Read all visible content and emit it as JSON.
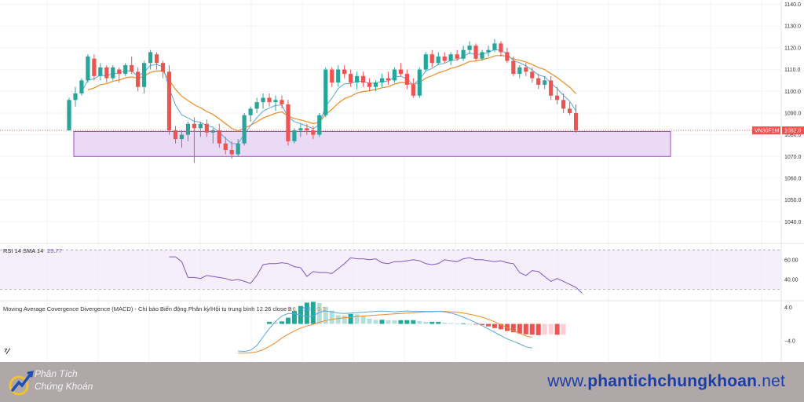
{
  "chart_data": {
    "type": "candlestick",
    "symbol_label": "VN30F1M",
    "last_price_label": "1082.0",
    "price_axis_ticks": [
      "1140.0",
      "1130.0",
      "1120.0",
      "1110.0",
      "1100.0",
      "1090.0",
      "1080.0",
      "1070.0",
      "1060.0",
      "1050.0",
      "1040.0"
    ],
    "price_ylim": [
      1030,
      1142
    ],
    "support_zone": [
      1070,
      1081.5
    ],
    "candles_ohlc": [
      [
        1082,
        1097,
        1082,
        1096
      ],
      [
        1096,
        1102,
        1093,
        1099
      ],
      [
        1099,
        1106,
        1098,
        1105
      ],
      [
        1105,
        1117,
        1104,
        1116
      ],
      [
        1115,
        1117,
        1105,
        1107
      ],
      [
        1107,
        1113,
        1105,
        1111
      ],
      [
        1111,
        1112,
        1104,
        1106
      ],
      [
        1106,
        1112,
        1105,
        1111
      ],
      [
        1110,
        1111,
        1104,
        1108
      ],
      [
        1108,
        1113,
        1107,
        1112
      ],
      [
        1112,
        1116,
        1108,
        1109
      ],
      [
        1109,
        1111,
        1100,
        1102
      ],
      [
        1102,
        1114,
        1099,
        1113
      ],
      [
        1113,
        1119,
        1110,
        1118
      ],
      [
        1117,
        1118,
        1110,
        1113
      ],
      [
        1113,
        1114,
        1106,
        1109
      ],
      [
        1109,
        1112,
        1080,
        1082
      ],
      [
        1082,
        1084,
        1076,
        1078
      ],
      [
        1078,
        1082,
        1074,
        1080
      ],
      [
        1080,
        1086,
        1077,
        1085
      ],
      [
        1085,
        1088,
        1067,
        1083
      ],
      [
        1083,
        1086,
        1079,
        1085
      ],
      [
        1085,
        1087,
        1079,
        1081
      ],
      [
        1081,
        1083,
        1076,
        1082
      ],
      [
        1082,
        1085,
        1074,
        1076
      ],
      [
        1076,
        1079,
        1071,
        1073
      ],
      [
        1073,
        1077,
        1069,
        1071
      ],
      [
        1071,
        1078,
        1070,
        1076
      ],
      [
        1076,
        1090,
        1075,
        1089
      ],
      [
        1089,
        1093,
        1086,
        1092
      ],
      [
        1092,
        1097,
        1090,
        1095
      ],
      [
        1095,
        1099,
        1092,
        1097
      ],
      [
        1097,
        1099,
        1093,
        1095
      ],
      [
        1095,
        1098,
        1091,
        1096
      ],
      [
        1096,
        1098,
        1092,
        1094
      ],
      [
        1094,
        1096,
        1075,
        1077
      ],
      [
        1077,
        1083,
        1076,
        1082
      ],
      [
        1082,
        1085,
        1079,
        1083
      ],
      [
        1083,
        1085,
        1080,
        1082
      ],
      [
        1082,
        1084,
        1078,
        1080
      ],
      [
        1080,
        1090,
        1079,
        1089
      ],
      [
        1089,
        1111,
        1088,
        1110
      ],
      [
        1110,
        1111,
        1102,
        1104
      ],
      [
        1104,
        1112,
        1102,
        1110
      ],
      [
        1110,
        1112,
        1106,
        1108
      ],
      [
        1108,
        1110,
        1102,
        1104
      ],
      [
        1104,
        1109,
        1101,
        1107
      ],
      [
        1107,
        1109,
        1102,
        1104
      ],
      [
        1104,
        1106,
        1100,
        1102
      ],
      [
        1102,
        1105,
        1100,
        1104
      ],
      [
        1104,
        1108,
        1102,
        1106
      ],
      [
        1106,
        1109,
        1103,
        1105
      ],
      [
        1105,
        1111,
        1104,
        1110
      ],
      [
        1110,
        1113,
        1107,
        1108
      ],
      [
        1108,
        1110,
        1101,
        1103
      ],
      [
        1103,
        1106,
        1097,
        1098
      ],
      [
        1098,
        1111,
        1097,
        1110
      ],
      [
        1110,
        1118,
        1109,
        1117
      ],
      [
        1117,
        1119,
        1111,
        1113
      ],
      [
        1113,
        1118,
        1112,
        1116
      ],
      [
        1116,
        1118,
        1113,
        1114
      ],
      [
        1114,
        1118,
        1112,
        1117
      ],
      [
        1117,
        1119,
        1114,
        1115
      ],
      [
        1115,
        1121,
        1114,
        1119
      ],
      [
        1119,
        1123,
        1117,
        1121
      ],
      [
        1121,
        1122,
        1114,
        1115
      ],
      [
        1115,
        1119,
        1114,
        1118
      ],
      [
        1118,
        1121,
        1116,
        1119
      ],
      [
        1119,
        1124,
        1118,
        1122
      ],
      [
        1122,
        1123,
        1116,
        1118
      ],
      [
        1118,
        1120,
        1113,
        1114
      ],
      [
        1114,
        1116,
        1107,
        1108
      ],
      [
        1108,
        1112,
        1106,
        1111
      ],
      [
        1111,
        1113,
        1107,
        1109
      ],
      [
        1109,
        1111,
        1104,
        1106
      ],
      [
        1106,
        1108,
        1101,
        1103
      ],
      [
        1103,
        1107,
        1101,
        1105
      ],
      [
        1105,
        1107,
        1096,
        1098
      ],
      [
        1098,
        1102,
        1094,
        1096
      ],
      [
        1096,
        1099,
        1090,
        1092
      ],
      [
        1092,
        1095,
        1089,
        1090
      ],
      [
        1090,
        1094,
        1081,
        1082
      ]
    ],
    "rsi": {
      "title": "RSI 14 SMA 14",
      "value_label": "25.77",
      "axis_ticks": [
        "60.00",
        "40.00"
      ],
      "ylim": [
        20,
        75
      ],
      "band": [
        30,
        70
      ],
      "start_index": 16,
      "values": [
        63,
        63,
        58,
        42,
        42,
        41,
        44,
        43,
        42,
        41,
        39,
        40,
        38,
        36,
        44,
        55,
        56,
        56,
        57,
        56,
        53,
        52,
        43,
        48,
        47,
        47,
        46,
        51,
        56,
        62,
        61,
        61,
        60,
        61,
        57,
        56,
        58,
        58,
        59,
        60,
        59,
        56,
        55,
        56,
        60,
        59,
        58,
        61,
        62,
        60,
        60,
        59,
        58,
        59,
        57,
        56,
        47,
        44,
        49,
        48,
        43,
        38,
        41,
        38,
        35,
        32,
        26
      ]
    },
    "macd": {
      "title": "Moving Average Covergence Divergence (MACD) - Chỉ báo Biến động Phân kỳ/Hội tụ trung bình 12 26 close 9",
      "values_labels": [
        "−2.6",
        "−5.8",
        "−3.2"
      ],
      "value_colors": [
        "#ef5350",
        "#5aa7dd",
        "#f08a24"
      ],
      "axis_ticks": [
        "4.0",
        "−4.0"
      ],
      "ylim": [
        -8,
        5
      ],
      "start_index": 32,
      "macd_line": [
        -6.5,
        -6.6,
        -6.3,
        -5.2,
        -3.1,
        -1.1,
        0.6,
        1.9,
        2.5,
        2.4,
        2.2,
        1.6,
        1.9,
        2.8,
        3.1,
        2.9,
        2.6,
        2.5,
        2.6,
        2.7,
        2.8,
        2.9,
        3.0,
        3.1,
        3.0,
        2.9,
        3.0,
        3.1,
        3.0,
        3.0,
        3.0,
        3.0,
        3.0,
        2.9,
        2.6,
        2.2,
        1.6,
        1.0,
        0.3,
        -0.4,
        -1.2,
        -2.0,
        -2.8,
        -3.6,
        -4.2,
        -4.8,
        -5.5,
        -5.8
      ],
      "signal_line": [
        -7.0,
        -7.0,
        -6.9,
        -6.7,
        -6.2,
        -5.4,
        -4.5,
        -3.4,
        -2.5,
        -1.7,
        -1.0,
        -0.5,
        -0.1,
        0.4,
        0.8,
        1.1,
        1.3,
        1.5,
        1.6,
        1.8,
        1.9,
        2.0,
        2.1,
        2.2,
        2.3,
        2.4,
        2.5,
        2.6,
        2.7,
        2.8,
        2.9,
        2.9,
        3.0,
        3.0,
        2.9,
        2.8,
        2.6,
        2.3,
        2.0,
        1.6,
        1.1,
        0.5,
        -0.2,
        -0.9,
        -1.6,
        -2.3,
        -2.9,
        -3.2
      ]
    }
  },
  "footer": {
    "brand_line1": "Phân Tích",
    "brand_line2": "Chứng Khoán",
    "website_prefix": "www.",
    "website_main": "phantichchungkhoan",
    "website_suffix": ".net"
  },
  "colors": {
    "up": "#26a69a",
    "down": "#ef5350",
    "ma_fast": "#5aa7dd",
    "ma_slow": "#f08a24",
    "zone_fill": "#e8d4f4",
    "zone_stroke": "#a348c9",
    "rsi_line": "#7e57c2",
    "footer_bg": "#b0a7a8",
    "website": "#1a3ea8"
  }
}
